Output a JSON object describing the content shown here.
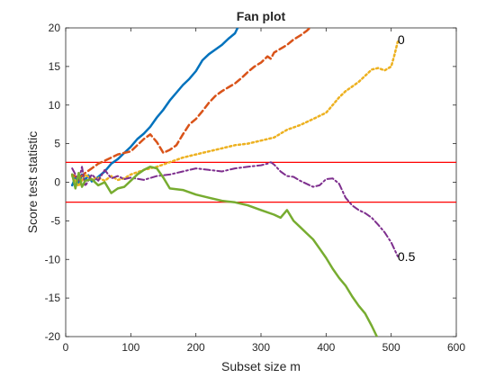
{
  "chart_data": {
    "type": "line",
    "title": "Fan plot",
    "xlabel": "Subset size m",
    "ylabel": "Score test statistic",
    "xlim": [
      0,
      600
    ],
    "ylim": [
      -20,
      20
    ],
    "xticks": [
      0,
      100,
      200,
      300,
      400,
      500,
      600
    ],
    "yticks": [
      -20,
      -15,
      -10,
      -5,
      0,
      5,
      10,
      15,
      20
    ],
    "grid": false,
    "legend": "none",
    "reference_lines": [
      {
        "y": 2.58,
        "color": "#ff0000"
      },
      {
        "y": -2.58,
        "color": "#ff0000"
      }
    ],
    "series_labels": [
      {
        "text": "0",
        "x": 510,
        "y": 18.5
      },
      {
        "text": "0.5",
        "x": 510,
        "y": -9.6
      }
    ],
    "series": [
      {
        "color": "#0072bd",
        "style": "solid",
        "width": 2.5,
        "x": [
          10,
          15,
          20,
          25,
          30,
          35,
          40,
          45,
          50,
          60,
          70,
          80,
          90,
          100,
          110,
          120,
          130,
          140,
          150,
          160,
          170,
          180,
          190,
          200,
          210,
          220,
          230,
          240,
          250,
          260,
          264
        ],
        "y": [
          -0.4,
          0.6,
          -0.2,
          1.0,
          0.3,
          0.9,
          0.1,
          0.4,
          0.7,
          1.4,
          2.4,
          3.0,
          3.8,
          4.6,
          5.6,
          6.3,
          7.2,
          8.4,
          9.4,
          10.6,
          11.6,
          12.6,
          13.4,
          14.4,
          15.8,
          16.6,
          17.2,
          17.8,
          18.6,
          19.3,
          20.0
        ]
      },
      {
        "color": "#d95319",
        "style": "dashed",
        "width": 2.5,
        "x": [
          10,
          20,
          30,
          40,
          50,
          60,
          70,
          80,
          90,
          100,
          110,
          120,
          130,
          140,
          150,
          160,
          170,
          180,
          190,
          200,
          210,
          220,
          230,
          240,
          250,
          260,
          270,
          280,
          290,
          300,
          310,
          315,
          320,
          330,
          340,
          350,
          360,
          370,
          375
        ],
        "y": [
          1.0,
          0.5,
          1.2,
          1.8,
          2.4,
          2.8,
          3.2,
          3.6,
          3.8,
          4.0,
          4.8,
          5.6,
          6.2,
          5.2,
          3.8,
          4.2,
          4.8,
          6.2,
          7.5,
          8.2,
          9.2,
          10.3,
          11.2,
          11.8,
          12.3,
          12.8,
          13.5,
          14.3,
          15.0,
          15.5,
          16.3,
          16.0,
          16.8,
          17.3,
          17.8,
          18.5,
          19.0,
          19.6,
          20.0
        ]
      },
      {
        "color": "#edb120",
        "style": "dotted",
        "width": 2.5,
        "x": [
          10,
          20,
          30,
          40,
          50,
          60,
          70,
          80,
          90,
          100,
          110,
          120,
          140,
          160,
          180,
          200,
          220,
          240,
          260,
          280,
          300,
          320,
          340,
          360,
          380,
          400,
          410,
          420,
          430,
          440,
          450,
          460,
          470,
          480,
          490,
          500,
          505,
          510
        ],
        "y": [
          0.8,
          -0.5,
          1.0,
          0.4,
          0.6,
          0.2,
          0.8,
          0.3,
          0.5,
          1.0,
          1.3,
          1.6,
          2.0,
          2.6,
          3.2,
          3.6,
          4.0,
          4.4,
          4.8,
          5.0,
          5.4,
          5.8,
          6.8,
          7.4,
          8.2,
          9.0,
          10.0,
          11.0,
          11.8,
          12.4,
          13.0,
          13.8,
          14.6,
          14.8,
          14.5,
          15.0,
          16.5,
          18.2
        ]
      },
      {
        "color": "#7e2f8e",
        "style": "dashdot",
        "width": 2.0,
        "x": [
          10,
          20,
          25,
          30,
          40,
          50,
          60,
          70,
          80,
          90,
          100,
          120,
          140,
          160,
          180,
          200,
          220,
          240,
          260,
          280,
          300,
          310,
          315,
          320,
          330,
          340,
          350,
          360,
          370,
          380,
          390,
          400,
          410,
          420,
          430,
          440,
          450,
          460,
          470,
          480,
          490,
          500,
          510
        ],
        "y": [
          1.8,
          0.2,
          2.0,
          -0.5,
          1.0,
          0.2,
          1.6,
          0.5,
          0.8,
          0.4,
          0.6,
          0.3,
          0.8,
          1.0,
          1.4,
          1.8,
          1.6,
          1.4,
          1.8,
          2.0,
          2.2,
          2.4,
          2.6,
          2.3,
          1.4,
          0.8,
          0.7,
          0.2,
          -0.2,
          -0.6,
          -0.4,
          0.4,
          0.5,
          -0.2,
          -2.0,
          -3.0,
          -3.6,
          -4.0,
          -4.6,
          -5.5,
          -6.5,
          -7.8,
          -9.6
        ]
      },
      {
        "color": "#77ac30",
        "style": "solid",
        "width": 2.5,
        "x": [
          10,
          15,
          20,
          25,
          30,
          40,
          50,
          60,
          70,
          80,
          90,
          100,
          110,
          120,
          130,
          140,
          150,
          160,
          180,
          200,
          220,
          240,
          260,
          280,
          300,
          320,
          330,
          340,
          350,
          360,
          370,
          380,
          390,
          400,
          410,
          420,
          430,
          440,
          450,
          460,
          470,
          478
        ],
        "y": [
          1.0,
          -0.8,
          1.2,
          -0.6,
          0.2,
          0.4,
          -0.4,
          0.0,
          -1.4,
          -0.8,
          -0.6,
          0.2,
          1.0,
          1.6,
          2.0,
          1.8,
          0.6,
          -0.8,
          -1.0,
          -1.6,
          -2.0,
          -2.4,
          -2.6,
          -3.0,
          -3.6,
          -4.2,
          -4.6,
          -3.6,
          -5.0,
          -5.8,
          -6.6,
          -7.4,
          -8.6,
          -9.8,
          -11.2,
          -12.4,
          -13.4,
          -14.8,
          -16.0,
          -17.0,
          -18.6,
          -20.0
        ]
      }
    ]
  }
}
